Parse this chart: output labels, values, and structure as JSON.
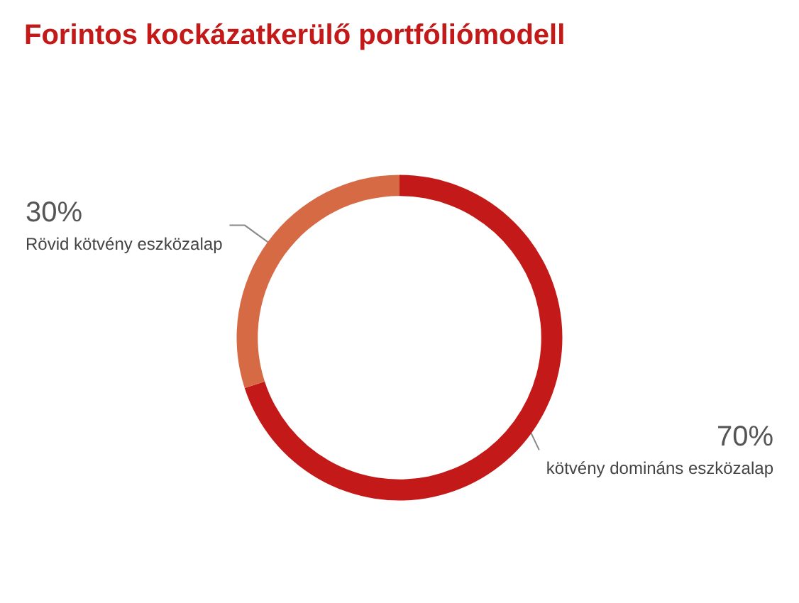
{
  "chart_data": {
    "type": "donut",
    "title": "Forintos kockázatkerülő portfóliómodell",
    "categories": [
      "kötvény domináns eszközalap",
      "Rövid kötvény eszközalap"
    ],
    "values": [
      70,
      30
    ],
    "colors": [
      "#c31a19",
      "#d66a45"
    ],
    "value_labels": [
      "70%",
      "30%"
    ],
    "legend": false
  }
}
